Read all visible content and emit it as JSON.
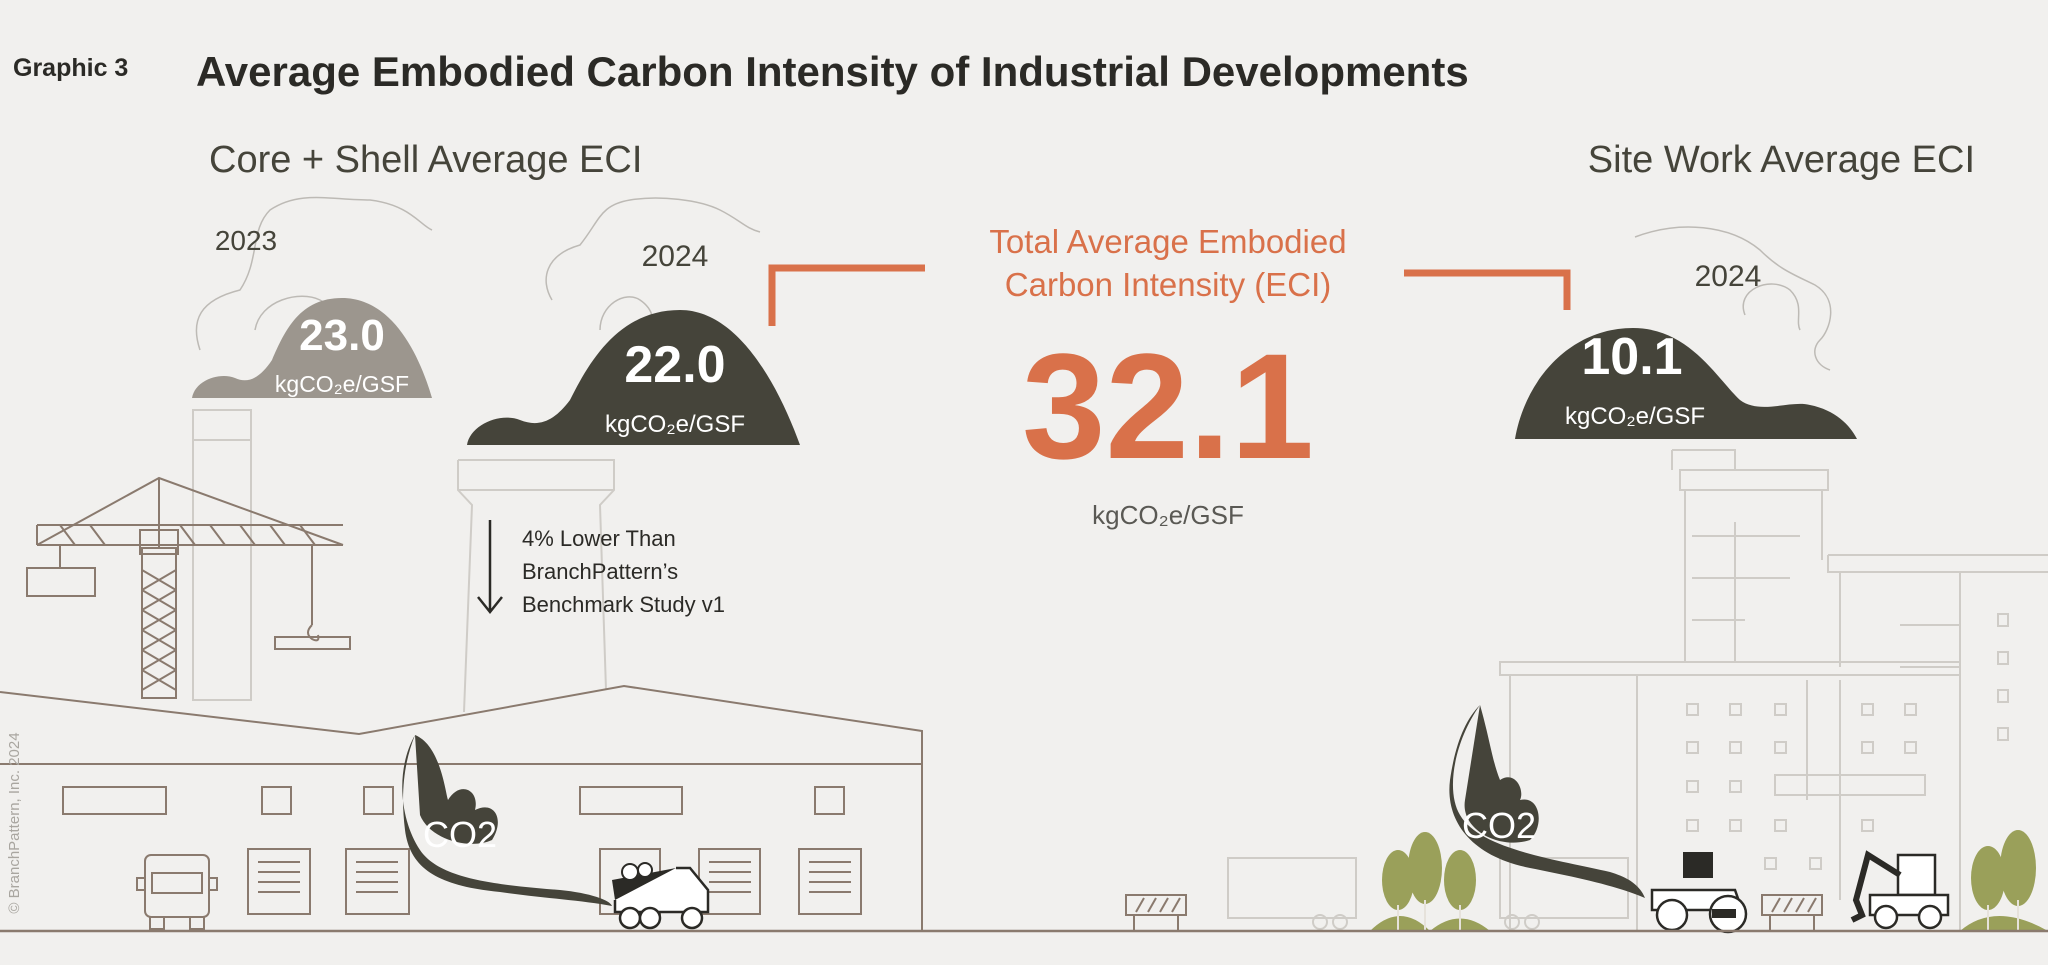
{
  "header": {
    "label": "Graphic 3",
    "title": "Average Embodied Carbon Intensity of Industrial Developments"
  },
  "core_shell": {
    "heading": "Core + Shell Average ECI",
    "year_2023": {
      "year": "2023",
      "value": "23.0",
      "unit": "kgCO₂e/GSF"
    },
    "year_2024": {
      "year": "2024",
      "value": "22.0",
      "unit": "kgCO₂e/GSF"
    },
    "comparison": {
      "direction": "down",
      "lines": [
        "4% Lower Than",
        "BranchPattern’s",
        "Benchmark Study v1"
      ]
    }
  },
  "total": {
    "title_lines": [
      "Total Average Embodied",
      "Carbon Intensity (ECI)"
    ],
    "value": "32.1",
    "unit": "kgCO₂e/GSF"
  },
  "site_work": {
    "heading": "Site Work Average ECI",
    "year_2024": {
      "year": "2024",
      "value": "10.1",
      "unit": "kgCO₂e/GSF"
    }
  },
  "illustration": {
    "co2_label_left": "CO2",
    "co2_label_right": "CO2"
  },
  "copyright": "© BranchPattern, Inc. 2024",
  "colors": {
    "background": "#f1f0ee",
    "dark_mound": "#45443a",
    "light_mound": "#9c968e",
    "accent_orange": "#d9714a",
    "tree_green": "#9aa05a"
  }
}
